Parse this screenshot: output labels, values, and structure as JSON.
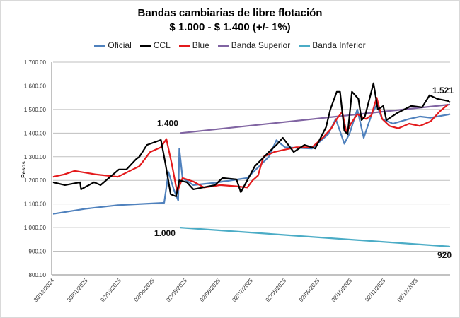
{
  "chart_data": {
    "type": "line",
    "title": "Bandas cambiarias de libre flotación",
    "subtitle": "$ 1.000 - $ 1.400 (+/- 1%)",
    "xlabel": "",
    "ylabel": "Pesos",
    "ylim": [
      800,
      1700
    ],
    "yticks": [
      800,
      900,
      1000,
      1100,
      1200,
      1300,
      1400,
      1500,
      1600,
      1700
    ],
    "ytick_labels": [
      "800.00",
      "900.00",
      "1,000.00",
      "1,100.00",
      "1,200.00",
      "1,300.00",
      "1,400.00",
      "1,500.00",
      "1,600.00",
      "1,700.00"
    ],
    "x_unit": "days since 30/12/2024",
    "xlim": [
      0,
      368
    ],
    "xticks": [
      0,
      31,
      62,
      93,
      123,
      154,
      184,
      215,
      246,
      276,
      307,
      337
    ],
    "xtick_labels": [
      "30/12/2024",
      "30/01/2025",
      "02/03/2025",
      "02/04/2025",
      "02/05/2025",
      "02/06/2025",
      "02/07/2025",
      "02/08/2025",
      "02/09/2025",
      "02/10/2025",
      "02/11/2025",
      "02/12/2025"
    ],
    "grid": "horizontal",
    "legend_position": "top",
    "series": [
      {
        "name": "Oficial",
        "color": "#4f81bd",
        "points": [
          [
            0,
            1058
          ],
          [
            30,
            1080
          ],
          [
            60,
            1095
          ],
          [
            103,
            1105
          ],
          [
            107,
            1235
          ],
          [
            112,
            1160
          ],
          [
            116,
            1115
          ],
          [
            117,
            1335
          ],
          [
            120,
            1210
          ],
          [
            130,
            1180
          ],
          [
            150,
            1190
          ],
          [
            180,
            1210
          ],
          [
            200,
            1300
          ],
          [
            207,
            1370
          ],
          [
            215,
            1340
          ],
          [
            240,
            1335
          ],
          [
            255,
            1395
          ],
          [
            262,
            1460
          ],
          [
            270,
            1355
          ],
          [
            275,
            1400
          ],
          [
            282,
            1500
          ],
          [
            288,
            1380
          ],
          [
            295,
            1475
          ],
          [
            300,
            1520
          ],
          [
            305,
            1460
          ],
          [
            315,
            1440
          ],
          [
            330,
            1460
          ],
          [
            340,
            1470
          ],
          [
            350,
            1465
          ],
          [
            368,
            1480
          ]
        ]
      },
      {
        "name": "CCL",
        "color": "#000000",
        "points": [
          [
            0,
            1192
          ],
          [
            11,
            1180
          ],
          [
            25,
            1192
          ],
          [
            26,
            1162
          ],
          [
            38,
            1192
          ],
          [
            44,
            1180
          ],
          [
            51,
            1207
          ],
          [
            61,
            1246
          ],
          [
            68,
            1246
          ],
          [
            77,
            1290
          ],
          [
            80,
            1300
          ],
          [
            87,
            1350
          ],
          [
            100,
            1371
          ],
          [
            104,
            1275
          ],
          [
            109,
            1141
          ],
          [
            114,
            1132
          ],
          [
            117,
            1200
          ],
          [
            124,
            1192
          ],
          [
            130,
            1162
          ],
          [
            140,
            1171
          ],
          [
            150,
            1180
          ],
          [
            157,
            1210
          ],
          [
            170,
            1204
          ],
          [
            174,
            1150
          ],
          [
            180,
            1200
          ],
          [
            187,
            1260
          ],
          [
            200,
            1320
          ],
          [
            207,
            1350
          ],
          [
            213,
            1380
          ],
          [
            223,
            1320
          ],
          [
            233,
            1350
          ],
          [
            243,
            1335
          ],
          [
            248,
            1380
          ],
          [
            253,
            1425
          ],
          [
            257,
            1500
          ],
          [
            263,
            1575
          ],
          [
            266,
            1575
          ],
          [
            270,
            1410
          ],
          [
            273,
            1395
          ],
          [
            277,
            1575
          ],
          [
            283,
            1545
          ],
          [
            286,
            1455
          ],
          [
            289,
            1470
          ],
          [
            295,
            1575
          ],
          [
            297,
            1611
          ],
          [
            301,
            1500
          ],
          [
            306,
            1515
          ],
          [
            309,
            1455
          ],
          [
            319,
            1485
          ],
          [
            332,
            1515
          ],
          [
            342,
            1509
          ],
          [
            349,
            1560
          ],
          [
            356,
            1545
          ],
          [
            366,
            1536
          ],
          [
            368,
            1530
          ]
        ]
      },
      {
        "name": "Blue",
        "color": "#e31a1c",
        "points": [
          [
            0,
            1215
          ],
          [
            10,
            1225
          ],
          [
            20,
            1240
          ],
          [
            40,
            1225
          ],
          [
            60,
            1215
          ],
          [
            80,
            1260
          ],
          [
            90,
            1320
          ],
          [
            100,
            1340
          ],
          [
            105,
            1375
          ],
          [
            110,
            1270
          ],
          [
            115,
            1150
          ],
          [
            120,
            1210
          ],
          [
            130,
            1195
          ],
          [
            140,
            1170
          ],
          [
            155,
            1180
          ],
          [
            170,
            1175
          ],
          [
            180,
            1170
          ],
          [
            185,
            1200
          ],
          [
            190,
            1220
          ],
          [
            195,
            1300
          ],
          [
            205,
            1320
          ],
          [
            215,
            1330
          ],
          [
            225,
            1340
          ],
          [
            240,
            1340
          ],
          [
            250,
            1380
          ],
          [
            258,
            1420
          ],
          [
            263,
            1460
          ],
          [
            268,
            1490
          ],
          [
            272,
            1400
          ],
          [
            276,
            1440
          ],
          [
            282,
            1480
          ],
          [
            290,
            1460
          ],
          [
            295,
            1475
          ],
          [
            300,
            1550
          ],
          [
            305,
            1460
          ],
          [
            312,
            1430
          ],
          [
            320,
            1420
          ],
          [
            330,
            1440
          ],
          [
            340,
            1430
          ],
          [
            350,
            1450
          ],
          [
            358,
            1490
          ],
          [
            366,
            1521
          ]
        ]
      },
      {
        "name": "Banda Superior",
        "color": "#8064a2",
        "points": [
          [
            118,
            1400
          ],
          [
            368,
            1521
          ]
        ]
      },
      {
        "name": "Banda Inferior",
        "color": "#4bacc6",
        "points": [
          [
            118,
            1000
          ],
          [
            368,
            920
          ]
        ]
      }
    ],
    "annotations": [
      {
        "text": "1.400",
        "x": 118,
        "y": 1400
      },
      {
        "text": "1.000",
        "x": 118,
        "y": 1000
      },
      {
        "text": "1.521",
        "x": 368,
        "y": 1521
      },
      {
        "text": "920",
        "x": 368,
        "y": 920
      }
    ]
  }
}
